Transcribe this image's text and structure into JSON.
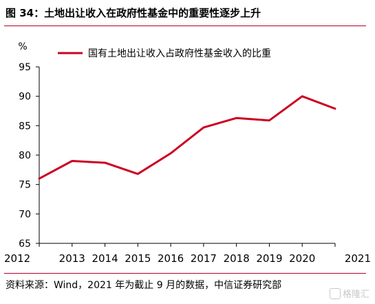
{
  "figure": {
    "title": "图 34：土地出让收入在政府性基金中的重要性逐步上升",
    "source": "资料来源：Wind，2021 年为截止 9 月的数据，中信证券研究部",
    "watermark": "格隆汇"
  },
  "colors": {
    "accent_rule": "#b0002a",
    "series_line": "#cc0022",
    "axis": "#000000"
  },
  "chart_data": {
    "type": "line",
    "title": "",
    "xlabel": "",
    "ylabel": "%",
    "x": [
      "2012",
      "2013",
      "2014",
      "2015",
      "2016",
      "2017",
      "2018",
      "2019",
      "2020",
      "2021"
    ],
    "ylim": [
      65,
      95
    ],
    "yticks": [
      65,
      70,
      75,
      80,
      85,
      90,
      95
    ],
    "grid": false,
    "legend_position": "top-center",
    "series": [
      {
        "name": "国有土地出让收入占政府性基金收入的比重",
        "values": [
          76.0,
          79.0,
          78.7,
          76.8,
          80.3,
          84.7,
          86.3,
          85.9,
          90.0,
          87.9
        ]
      }
    ]
  }
}
